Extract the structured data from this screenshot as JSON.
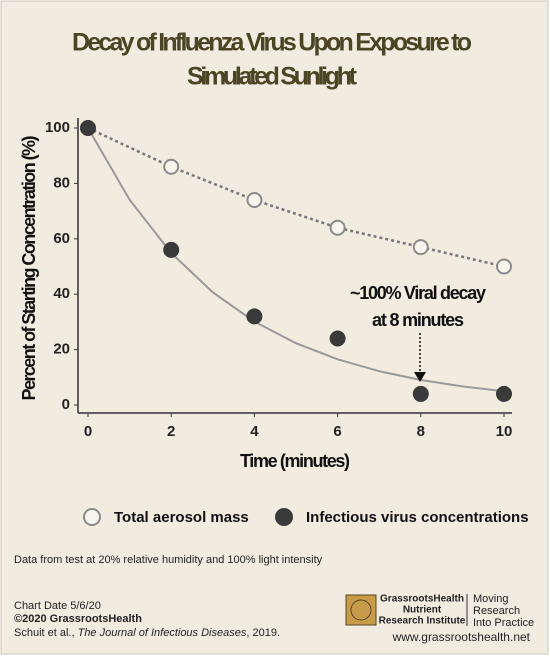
{
  "chart_data": {
    "type": "scatter",
    "title": [
      "Decay of Influenza Virus Upon Exposure to",
      "Simulated Sunlight"
    ],
    "x_label": "Time (minutes)",
    "y_label": "Percent of Starting Concentration (%)",
    "x": [
      0,
      2,
      4,
      6,
      8,
      10
    ],
    "series": [
      {
        "name": "Total aerosol mass",
        "color": "#8a8a8a",
        "values": [
          100,
          86,
          74,
          64,
          57,
          50
        ]
      },
      {
        "name": "Infectious virus concentrations",
        "color": "#3a3a3a",
        "values": [
          100,
          56,
          32,
          24,
          4,
          4
        ]
      }
    ],
    "xlim": [
      0,
      10
    ],
    "xticks": [
      0,
      2,
      4,
      6,
      8,
      10
    ],
    "ylim": [
      0,
      100
    ],
    "yticks": [
      0,
      20,
      40,
      60,
      80,
      100
    ],
    "annotation": [
      "~100% Viral decay",
      "at 8 minutes"
    ]
  },
  "footer": {
    "note": "Data from test at 20% relative humidity and 100% light intensity",
    "chart_date": "Chart Date 5/6/20",
    "copyright": "©2020 GrassrootsHealth",
    "citation": {
      "authors": "Schuit et al., ",
      "journal": "The Journal of Infectious Diseases",
      "year": ", 2019."
    },
    "logo": {
      "org": [
        "GrassrootsHealth",
        "Nutrient",
        "Research Institute"
      ],
      "tagline": [
        "Moving",
        "Research",
        "Into Practice"
      ]
    },
    "website": "www.grassrootshealth.net"
  }
}
